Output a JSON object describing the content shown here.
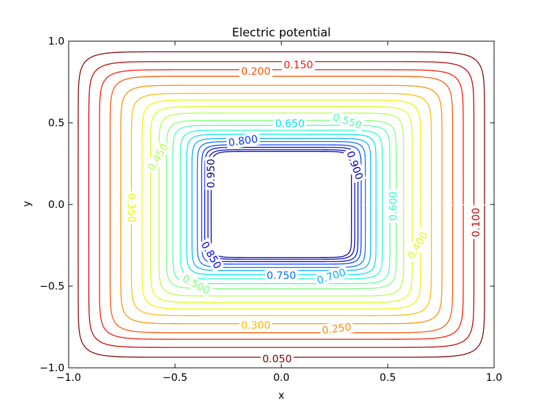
{
  "chart_data": {
    "type": "contour",
    "title": "Electric potential",
    "xlabel": "x",
    "ylabel": "y",
    "xlim": [
      -1.0,
      1.0
    ],
    "ylim": [
      -1.0,
      1.0
    ],
    "x_ticks": [
      "−1.0",
      "−0.5",
      "0.0",
      "0.5",
      "1.0"
    ],
    "y_ticks": [
      "−1.0",
      "−0.5",
      "0.0",
      "0.5",
      "1.0"
    ],
    "grid": false,
    "colormap": "jet",
    "region": {
      "description": "potential between outer boundary (0 V) and inner square conductor (1 V)"
    },
    "levels": [
      {
        "value": 0.05,
        "label": "0.050",
        "color": "#800000"
      },
      {
        "value": 0.1,
        "label": "0.100",
        "color": "#c20000"
      },
      {
        "value": 0.15,
        "label": "0.150",
        "color": "#ff1300"
      },
      {
        "value": 0.2,
        "label": "0.200",
        "color": "#ff5200"
      },
      {
        "value": 0.25,
        "label": "0.250",
        "color": "#ff8d00"
      },
      {
        "value": 0.3,
        "label": "0.300",
        "color": "#ffb900"
      },
      {
        "value": 0.35,
        "label": "0.350",
        "color": "#f0f500"
      },
      {
        "value": 0.4,
        "label": "0.400",
        "color": "#d7ff1f"
      },
      {
        "value": 0.45,
        "label": "0.450",
        "color": "#b0ff46"
      },
      {
        "value": 0.5,
        "label": "0.500",
        "color": "#7dff7a"
      },
      {
        "value": 0.55,
        "label": "0.550",
        "color": "#4dffaa"
      },
      {
        "value": 0.6,
        "label": "0.600",
        "color": "#26ffd1"
      },
      {
        "value": 0.65,
        "label": "0.650",
        "color": "#00e4f8"
      },
      {
        "value": 0.7,
        "label": "0.700",
        "color": "#00b0ff"
      },
      {
        "value": 0.75,
        "label": "0.750",
        "color": "#0070ff"
      },
      {
        "value": 0.8,
        "label": "0.800",
        "color": "#003cff"
      },
      {
        "value": 0.85,
        "label": "0.850",
        "color": "#0000f1"
      },
      {
        "value": 0.9,
        "label": "0.900",
        "color": "#0000c4"
      },
      {
        "value": 0.95,
        "label": "0.950",
        "color": "#00008f"
      }
    ],
    "contours": [
      {
        "value": 0.05,
        "hx": 0.955,
        "hy": 0.935
      },
      {
        "value": 0.1,
        "hx": 0.905,
        "hy": 0.875
      },
      {
        "value": 0.15,
        "hx": 0.855,
        "hy": 0.825
      },
      {
        "value": 0.2,
        "hx": 0.805,
        "hy": 0.785
      },
      {
        "value": 0.25,
        "hx": 0.755,
        "hy": 0.73
      },
      {
        "value": 0.3,
        "hx": 0.705,
        "hy": 0.68
      },
      {
        "value": 0.35,
        "hx": 0.655,
        "hy": 0.64
      },
      {
        "value": 0.4,
        "hx": 0.615,
        "hy": 0.6
      },
      {
        "value": 0.45,
        "hx": 0.575,
        "hy": 0.56
      },
      {
        "value": 0.5,
        "hx": 0.54,
        "hy": 0.515
      },
      {
        "value": 0.55,
        "hx": 0.51,
        "hy": 0.485
      },
      {
        "value": 0.6,
        "hx": 0.475,
        "hy": 0.455
      },
      {
        "value": 0.65,
        "hx": 0.445,
        "hy": 0.43
      },
      {
        "value": 0.7,
        "hx": 0.42,
        "hy": 0.405
      },
      {
        "value": 0.75,
        "hx": 0.395,
        "hy": 0.385
      },
      {
        "value": 0.8,
        "hx": 0.375,
        "hy": 0.365
      },
      {
        "value": 0.85,
        "hx": 0.36,
        "hy": 0.35
      },
      {
        "value": 0.9,
        "hx": 0.345,
        "hy": 0.335
      },
      {
        "value": 0.95,
        "hx": 0.33,
        "hy": 0.325
      }
    ],
    "contour_labels": [
      {
        "text": "0.150",
        "x": 0.08,
        "y": 0.855,
        "angle": 0
      },
      {
        "text": "0.200",
        "x": -0.12,
        "y": 0.815,
        "angle": 0
      },
      {
        "text": "0.650",
        "x": 0.04,
        "y": 0.495,
        "angle": 0
      },
      {
        "text": "0.550",
        "x": 0.31,
        "y": 0.51,
        "angle": 18
      },
      {
        "text": "0.800",
        "x": -0.18,
        "y": 0.39,
        "angle": -8
      },
      {
        "text": "0.900",
        "x": 0.345,
        "y": 0.24,
        "angle": 70
      },
      {
        "text": "0.950",
        "x": -0.33,
        "y": 0.19,
        "angle": -90
      },
      {
        "text": "0.450",
        "x": -0.58,
        "y": 0.29,
        "angle": -60
      },
      {
        "text": "0.350",
        "x": -0.705,
        "y": -0.02,
        "angle": 90
      },
      {
        "text": "0.600",
        "x": 0.525,
        "y": -0.01,
        "angle": -90
      },
      {
        "text": "0.400",
        "x": 0.64,
        "y": -0.25,
        "angle": -60
      },
      {
        "text": "0.100",
        "x": 0.915,
        "y": -0.11,
        "angle": -90
      },
      {
        "text": "0.850",
        "x": -0.33,
        "y": -0.31,
        "angle": 60
      },
      {
        "text": "0.750",
        "x": 0.0,
        "y": -0.435,
        "angle": 0
      },
      {
        "text": "0.700",
        "x": 0.235,
        "y": -0.44,
        "angle": -18
      },
      {
        "text": "0.500",
        "x": -0.4,
        "y": -0.49,
        "angle": 28
      },
      {
        "text": "0.300",
        "x": -0.12,
        "y": -0.74,
        "angle": 0
      },
      {
        "text": "0.250",
        "x": 0.26,
        "y": -0.76,
        "angle": -8
      },
      {
        "text": "0.050",
        "x": -0.02,
        "y": -0.945,
        "angle": 0
      }
    ]
  }
}
